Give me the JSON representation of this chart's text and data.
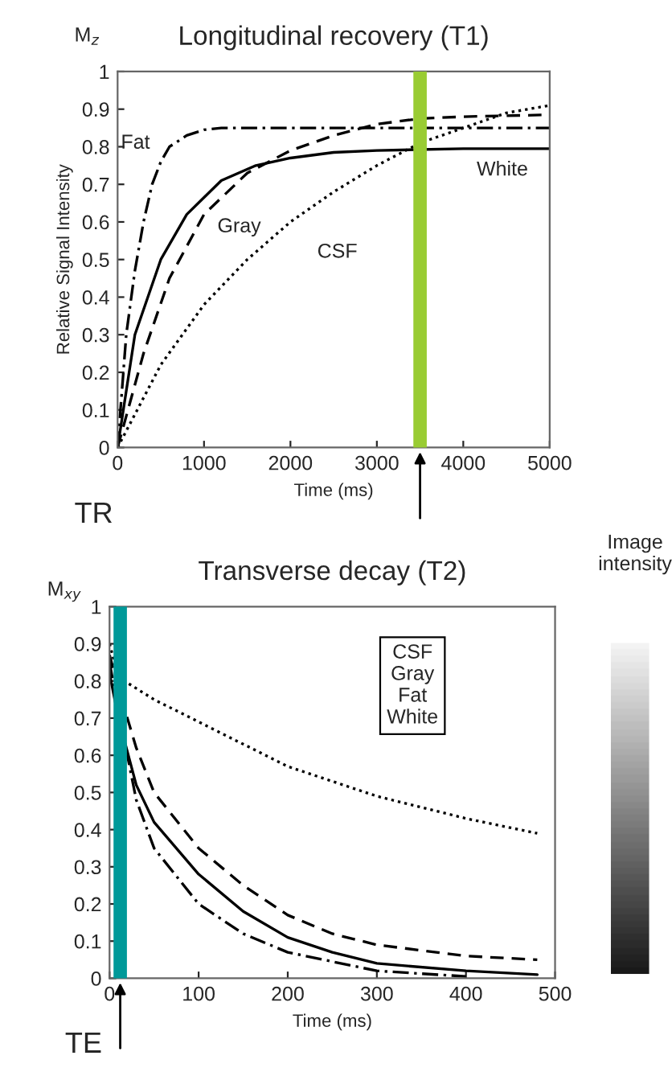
{
  "chart_data": [
    {
      "type": "line",
      "title": "Longitudinal recovery (T1)",
      "xlabel": "Time (ms)",
      "ylabel": "Relative Signal Intensity",
      "xlim": [
        0,
        5000
      ],
      "xticks": [
        0,
        1000,
        2000,
        3000,
        4000,
        5000
      ],
      "ylim": [
        0,
        1
      ],
      "yticks": [
        0,
        0.1,
        0.2,
        0.3,
        0.4,
        0.5,
        0.6,
        0.7,
        0.8,
        0.9,
        1
      ],
      "grid": false,
      "legend": false,
      "series": [
        {
          "name": "Fat",
          "color": "#000000",
          "line_style": "dashdot",
          "x": [
            0,
            100,
            200,
            300,
            400,
            500,
            600,
            800,
            1000,
            1200,
            1500,
            2000,
            3000,
            4000,
            5000
          ],
          "values": [
            0,
            0.3,
            0.47,
            0.6,
            0.7,
            0.76,
            0.8,
            0.83,
            0.845,
            0.85,
            0.85,
            0.85,
            0.85,
            0.85,
            0.85
          ]
        },
        {
          "name": "White",
          "color": "#000000",
          "line_style": "solid",
          "x": [
            0,
            200,
            500,
            800,
            1200,
            1600,
            2000,
            2500,
            3000,
            4000,
            5000
          ],
          "values": [
            0,
            0.3,
            0.5,
            0.62,
            0.71,
            0.75,
            0.77,
            0.785,
            0.79,
            0.795,
            0.795
          ]
        },
        {
          "name": "Gray",
          "color": "#000000",
          "line_style": "dashed",
          "x": [
            0,
            300,
            600,
            1000,
            1500,
            2000,
            2500,
            3000,
            3500,
            4000,
            5000
          ],
          "values": [
            0,
            0.25,
            0.45,
            0.62,
            0.73,
            0.79,
            0.83,
            0.86,
            0.875,
            0.88,
            0.885
          ]
        },
        {
          "name": "CSF",
          "color": "#000000",
          "line_style": "dotted",
          "x": [
            0,
            500,
            1000,
            1500,
            2000,
            2500,
            3000,
            3500,
            4000,
            4500,
            5000
          ],
          "values": [
            0,
            0.22,
            0.38,
            0.5,
            0.6,
            0.68,
            0.75,
            0.81,
            0.85,
            0.89,
            0.91
          ]
        }
      ],
      "ref_lines": [
        {
          "axis": "x",
          "value": 3500,
          "color": "#99cc33"
        }
      ],
      "annotations": [
        "M$_{z}$",
        "TR"
      ]
    },
    {
      "type": "line",
      "title": "Transverse decay (T2)",
      "xlabel": "Time (ms)",
      "xlim": [
        0,
        500
      ],
      "xticks": [
        0,
        100,
        200,
        300,
        400,
        500
      ],
      "ylim": [
        0,
        1
      ],
      "yticks": [
        0,
        0.1,
        0.2,
        0.3,
        0.4,
        0.5,
        0.6,
        0.7,
        0.8,
        0.9,
        1
      ],
      "grid": false,
      "legend": false,
      "series": [
        {
          "color": "#000000",
          "line_style": "dotted",
          "x": [
            0,
            10,
            50,
            100,
            150,
            200,
            250,
            300,
            350,
            400,
            480
          ],
          "values": [
            0.9,
            0.81,
            0.75,
            0.69,
            0.63,
            0.57,
            0.53,
            0.49,
            0.46,
            0.43,
            0.39
          ]
        },
        {
          "color": "#000000",
          "line_style": "dashed",
          "x": [
            0,
            10,
            30,
            50,
            100,
            150,
            200,
            250,
            300,
            400,
            480
          ],
          "values": [
            0.87,
            0.78,
            0.62,
            0.5,
            0.35,
            0.25,
            0.17,
            0.12,
            0.09,
            0.06,
            0.05
          ]
        },
        {
          "color": "#000000",
          "line_style": "dashdot",
          "x": [
            0,
            10,
            30,
            50,
            100,
            150,
            200,
            300,
            400
          ],
          "values": [
            0.85,
            0.72,
            0.48,
            0.35,
            0.2,
            0.12,
            0.07,
            0.02,
            0.005
          ]
        },
        {
          "color": "#000000",
          "line_style": "solid",
          "x": [
            0,
            10,
            30,
            50,
            100,
            150,
            200,
            250,
            300,
            400,
            480
          ],
          "values": [
            0.82,
            0.7,
            0.52,
            0.42,
            0.28,
            0.18,
            0.11,
            0.07,
            0.04,
            0.02,
            0.01
          ]
        }
      ],
      "ref_lines": [
        {
          "axis": "x",
          "value": 12,
          "color": "#009999"
        }
      ],
      "annotations": [
        "CSF\nGray\nFat\nWhite",
        "M$_{xy}$",
        "TE",
        "Image intensity"
      ]
    }
  ]
}
